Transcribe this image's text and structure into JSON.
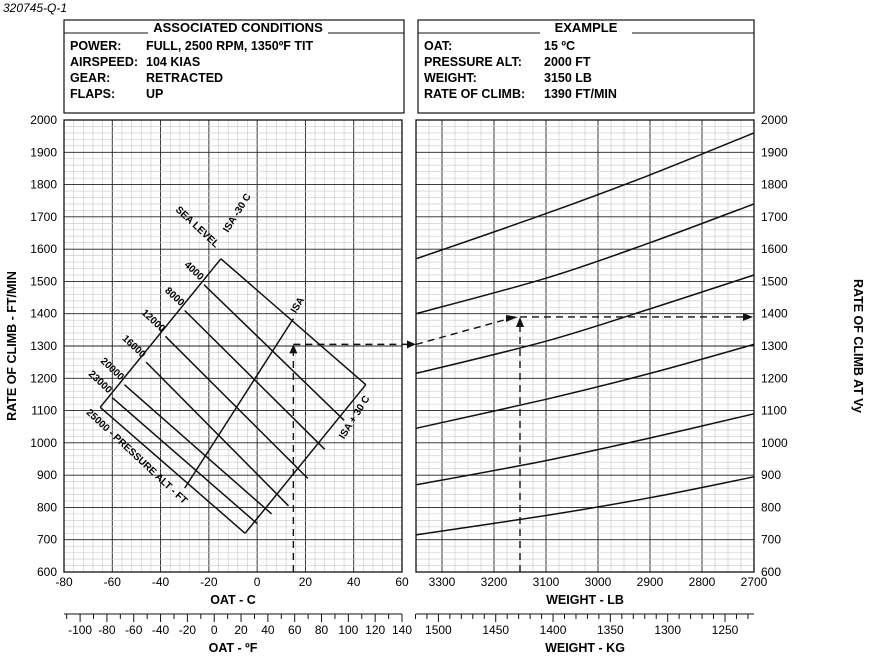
{
  "figure_id": "320745-Q-1",
  "associated_conditions": {
    "title": "ASSOCIATED CONDITIONS",
    "rows": [
      {
        "key": "POWER:",
        "value": "FULL, 2500 RPM, 1350ºF TIT"
      },
      {
        "key": "AIRSPEED:",
        "value": "104 KIAS"
      },
      {
        "key": "GEAR:",
        "value": "RETRACTED"
      },
      {
        "key": "FLAPS:",
        "value": "UP"
      }
    ]
  },
  "example": {
    "title": "EXAMPLE",
    "rows": [
      {
        "key": "OAT:",
        "value": "15 ºC"
      },
      {
        "key": "PRESSURE ALT:",
        "value": "2000 FT"
      },
      {
        "key": "WEIGHT:",
        "value": "3150 LB"
      },
      {
        "key": "RATE OF CLIMB:",
        "value": "1390 FT/MIN"
      }
    ]
  },
  "chart_data": {
    "type": "line",
    "y_label_left": "RATE OF CLIMB - FT/MIN",
    "y_label_right": "RATE OF CLIMB AT Vy",
    "y_range": [
      600,
      2000
    ],
    "y_ticks": [
      "600",
      "700",
      "800",
      "900",
      "1000",
      "1100",
      "1200",
      "1300",
      "1400",
      "1500",
      "1600",
      "1700",
      "1800",
      "1900",
      "2000"
    ],
    "left_panel": {
      "x_label": "OAT - C",
      "x_range": [
        -80,
        60
      ],
      "x_ticks": [
        "-80",
        "-60",
        "-40",
        "-20",
        "0",
        "20",
        "40",
        "60"
      ],
      "secondary_x_label": "OAT - ºF",
      "secondary_x_ticks": [
        "-100",
        "-80",
        "-60",
        "-40",
        "-20",
        "0",
        "20",
        "40",
        "60",
        "80",
        "100",
        "120",
        "140"
      ],
      "pressure_altitude_labels": [
        "SEA LEVEL",
        "4000",
        "8000",
        "12000",
        "16000",
        "20000",
        "23000",
        "25000 - PRESSURE ALT - FT"
      ],
      "isa_line_labels": [
        "ISA -30 C",
        "ISA",
        "ISA + 30 C"
      ],
      "pressure_altitude_lines": [
        {
          "name": "SEA LEVEL",
          "points": [
            [
              -15,
              1570
            ],
            [
              45,
              1180
            ]
          ]
        },
        {
          "name": "4000",
          "points": [
            [
              -22,
              1490
            ],
            [
              36,
              1070
            ]
          ]
        },
        {
          "name": "8000",
          "points": [
            [
              -30,
              1410
            ],
            [
              28,
              980
            ]
          ]
        },
        {
          "name": "12000",
          "points": [
            [
              -38,
              1330
            ],
            [
              21,
              890
            ]
          ]
        },
        {
          "name": "16000",
          "points": [
            [
              -46,
              1250
            ],
            [
              13,
              805
            ]
          ]
        },
        {
          "name": "20000",
          "points": [
            [
              -55,
              1180
            ],
            [
              6,
              780
            ]
          ]
        },
        {
          "name": "23000",
          "points": [
            [
              -60,
              1140
            ],
            [
              0,
              750
            ]
          ]
        },
        {
          "name": "25000",
          "points": [
            [
              -65,
              1110
            ],
            [
              -5,
              720
            ]
          ]
        }
      ],
      "temperature_lines": [
        {
          "name": "ISA -30 C",
          "points": [
            [
              -15,
              1570
            ],
            [
              -65,
              1110
            ]
          ]
        },
        {
          "name": "ISA",
          "points": [
            [
              15,
              1385
            ],
            [
              -30,
              860
            ]
          ]
        },
        {
          "name": "ISA + 30 C",
          "points": [
            [
              45,
              1180
            ],
            [
              -5,
              720
            ]
          ]
        }
      ]
    },
    "right_panel": {
      "x_label": "WEIGHT - LB",
      "x_range": [
        3350,
        2700
      ],
      "x_ticks": [
        "3300",
        "3200",
        "3100",
        "3000",
        "2900",
        "2800",
        "2700"
      ],
      "secondary_x_label": "WEIGHT - KG",
      "secondary_x_ticks": [
        "1500",
        "1450",
        "1400",
        "1350",
        "1300",
        "1250"
      ],
      "guide_lines": [
        {
          "points": [
            [
              3350,
              1570
            ],
            [
              3100,
              1710
            ],
            [
              2900,
              1830
            ],
            [
              2700,
              1960
            ]
          ]
        },
        {
          "points": [
            [
              3350,
              1400
            ],
            [
              3100,
              1510
            ],
            [
              2900,
              1620
            ],
            [
              2700,
              1740
            ]
          ]
        },
        {
          "points": [
            [
              3350,
              1215
            ],
            [
              3100,
              1315
            ],
            [
              2900,
              1415
            ],
            [
              2700,
              1520
            ]
          ]
        },
        {
          "points": [
            [
              3350,
              1045
            ],
            [
              3100,
              1135
            ],
            [
              2900,
              1215
            ],
            [
              2700,
              1305
            ]
          ]
        },
        {
          "points": [
            [
              3350,
              870
            ],
            [
              3100,
              945
            ],
            [
              2900,
              1015
            ],
            [
              2700,
              1090
            ]
          ]
        },
        {
          "points": [
            [
              3350,
              715
            ],
            [
              3100,
              775
            ],
            [
              2900,
              830
            ],
            [
              2700,
              895
            ]
          ]
        }
      ]
    },
    "example_path": {
      "oat_c": 15,
      "reference_rate": 1305,
      "weight_lb": 3150,
      "result_rate": 1390
    },
    "grid": true
  }
}
